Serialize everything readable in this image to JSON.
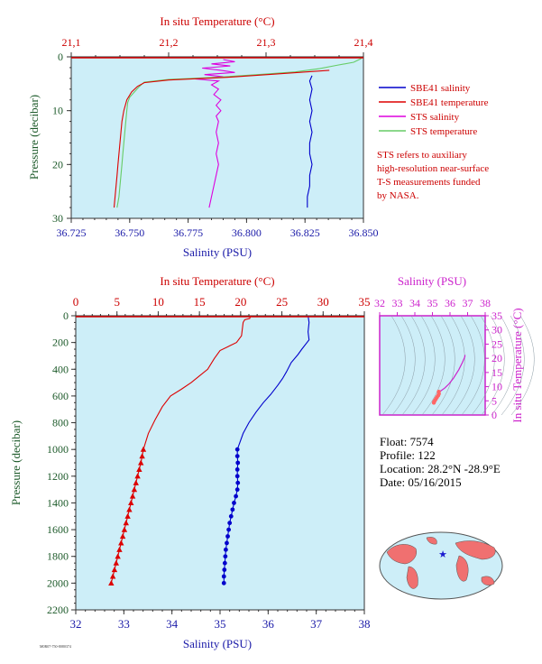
{
  "colors": {
    "panel_bg": "#cdeef8",
    "salinity_axis": "#1a1aa8",
    "temperature_axis": "#cc0000",
    "pressure_axis": "#1d5a2a",
    "sbe_salinity": "#0000cc",
    "sbe_temperature": "#dd0000",
    "sts_salinity": "#dd00dd",
    "sts_temperature": "#66cc66",
    "ts_magenta": "#cc22cc",
    "ts_point": "#ff6666"
  },
  "legend": {
    "sbe_salinity": "SBE41 salinity",
    "sbe_temperature": "SBE41 temperature",
    "sts_salinity": "STS salinity",
    "sts_temperature": "STS temperature"
  },
  "note_lines": [
    "STS refers to auxiliary",
    "high-resolution near-surface",
    "T-S measurements funded",
    "by NASA."
  ],
  "float_info": {
    "float": "Float:  7574",
    "profile": "Profile:  122",
    "location": "Location:  28.2°N  -28.9°E",
    "date": "Date:  05/16/2015"
  },
  "footer_code": "M0R07-750-8080374",
  "chart_data": [
    {
      "type": "line",
      "name": "near-surface profile",
      "top_axis_label": "In situ Temperature (°C)",
      "xlabel": "Salinity (PSU)",
      "ylabel": "Pressure (decibar)",
      "temperature_ticks": [
        "21,1",
        "21,2",
        "21,3",
        "21,4"
      ],
      "salinity_ticks": [
        "36.725",
        "36.750",
        "36.775",
        "36.800",
        "36.825",
        "36.850"
      ],
      "pressure_ticks": [
        "0",
        "10",
        "20",
        "30"
      ],
      "xlim_salinity": [
        36.725,
        36.85
      ],
      "xlim_temperature": [
        21.1,
        21.4
      ],
      "ylim_pressure": [
        0,
        30
      ],
      "y_reversed": true,
      "series": [
        {
          "name": "STS salinity",
          "x_units": "salinity",
          "points": [
            [
              36.79,
              0.5
            ],
            [
              36.795,
              0.9
            ],
            [
              36.785,
              1.3
            ],
            [
              36.793,
              1.7
            ],
            [
              36.781,
              2.1
            ],
            [
              36.789,
              2.5
            ],
            [
              36.795,
              2.9
            ],
            [
              36.782,
              3.3
            ],
            [
              36.79,
              3.7
            ],
            [
              36.778,
              4.1
            ],
            [
              36.788,
              4.5
            ],
            [
              36.785,
              5.2
            ],
            [
              36.788,
              6
            ],
            [
              36.786,
              7
            ],
            [
              36.789,
              8
            ],
            [
              36.787,
              9
            ],
            [
              36.789,
              10
            ],
            [
              36.787,
              11
            ],
            [
              36.788,
              12
            ],
            [
              36.787,
              14
            ],
            [
              36.788,
              16
            ],
            [
              36.787,
              18
            ],
            [
              36.788,
              20
            ],
            [
              36.787,
              22
            ],
            [
              36.786,
              24
            ],
            [
              36.785,
              26
            ],
            [
              36.784,
              28
            ]
          ]
        },
        {
          "name": "SBE41 salinity",
          "x_units": "salinity",
          "points": [
            [
              36.828,
              3.5
            ],
            [
              36.827,
              4.5
            ],
            [
              36.828,
              6
            ],
            [
              36.827,
              8
            ],
            [
              36.828,
              10
            ],
            [
              36.827,
              12
            ],
            [
              36.828,
              14
            ],
            [
              36.827,
              16
            ],
            [
              36.827,
              18
            ],
            [
              36.828,
              20
            ],
            [
              36.827,
              22
            ],
            [
              36.827,
              24
            ],
            [
              36.826,
              26
            ],
            [
              36.826,
              28
            ]
          ]
        },
        {
          "name": "STS temperature",
          "x_units": "temperature",
          "points": [
            [
              21.398,
              0.3
            ],
            [
              21.39,
              1
            ],
            [
              21.372,
              1.6
            ],
            [
              21.355,
              2.2
            ],
            [
              21.33,
              2.8
            ],
            [
              21.3,
              3.2
            ],
            [
              21.25,
              3.8
            ],
            [
              21.2,
              4.2
            ],
            [
              21.175,
              4.7
            ],
            [
              21.17,
              5.5
            ],
            [
              21.165,
              6.5
            ],
            [
              21.16,
              7.5
            ],
            [
              21.158,
              8.5
            ],
            [
              21.157,
              10
            ],
            [
              21.156,
              12
            ],
            [
              21.155,
              14
            ],
            [
              21.154,
              16
            ],
            [
              21.153,
              18
            ],
            [
              21.152,
              20
            ],
            [
              21.151,
              22
            ],
            [
              21.15,
              24
            ],
            [
              21.149,
              26
            ],
            [
              21.147,
              28
            ]
          ]
        },
        {
          "name": "SBE41 temperature",
          "x_units": "temperature",
          "points": [
            [
              21.365,
              2.5
            ],
            [
              21.31,
              3.2
            ],
            [
              21.26,
              3.8
            ],
            [
              21.2,
              4.3
            ],
            [
              21.175,
              4.8
            ],
            [
              21.168,
              5.5
            ],
            [
              21.162,
              6.5
            ],
            [
              21.157,
              8
            ],
            [
              21.154,
              10
            ],
            [
              21.152,
              12
            ],
            [
              21.151,
              14
            ],
            [
              21.15,
              16
            ],
            [
              21.149,
              18
            ],
            [
              21.148,
              20
            ],
            [
              21.147,
              22
            ],
            [
              21.146,
              24
            ],
            [
              21.145,
              26
            ],
            [
              21.144,
              28
            ]
          ]
        }
      ]
    },
    {
      "type": "line",
      "name": "full-depth profile",
      "top_axis_label": "In situ Temperature (°C)",
      "xlabel": "Salinity (PSU)",
      "ylabel": "Pressure (decibar)",
      "temperature_ticks": [
        "0",
        "5",
        "10",
        "15",
        "20",
        "25",
        "30",
        "35"
      ],
      "salinity_ticks": [
        "32",
        "33",
        "34",
        "35",
        "36",
        "37",
        "38"
      ],
      "pressure_ticks": [
        "0",
        "200",
        "400",
        "600",
        "800",
        "1000",
        "1200",
        "1400",
        "1600",
        "1800",
        "2000",
        "2200"
      ],
      "xlim_salinity": [
        32,
        38
      ],
      "xlim_temperature": [
        0,
        35
      ],
      "ylim_pressure": [
        0,
        2200
      ],
      "y_reversed": true,
      "series": [
        {
          "name": "SBE41 temperature",
          "x_units": "temperature",
          "points": [
            [
              21.2,
              0
            ],
            [
              21.1,
              20
            ],
            [
              20.5,
              30
            ],
            [
              20.3,
              50
            ],
            [
              20.1,
              150
            ],
            [
              19.5,
              200
            ],
            [
              18.5,
              230
            ],
            [
              17.5,
              260
            ],
            [
              16.8,
              320
            ],
            [
              16,
              400
            ],
            [
              15,
              450
            ],
            [
              14,
              500
            ],
            [
              12.8,
              550
            ],
            [
              11.5,
              600
            ],
            [
              10.5,
              680
            ],
            [
              9.6,
              780
            ],
            [
              8.8,
              880
            ],
            [
              8.4,
              960
            ],
            [
              8.2,
              1000
            ],
            [
              8.05,
              1050
            ],
            [
              7.9,
              1100
            ],
            [
              7.7,
              1150
            ],
            [
              7.5,
              1200
            ],
            [
              7.3,
              1250
            ],
            [
              7.1,
              1300
            ],
            [
              6.9,
              1350
            ],
            [
              6.7,
              1400
            ],
            [
              6.5,
              1450
            ],
            [
              6.3,
              1500
            ],
            [
              6.1,
              1550
            ],
            [
              5.9,
              1600
            ],
            [
              5.7,
              1650
            ],
            [
              5.5,
              1700
            ],
            [
              5.3,
              1750
            ],
            [
              5.1,
              1800
            ],
            [
              4.9,
              1850
            ],
            [
              4.7,
              1900
            ],
            [
              4.5,
              1950
            ],
            [
              4.3,
              2000
            ]
          ]
        },
        {
          "name": "SBE41 salinity",
          "x_units": "salinity",
          "points": [
            [
              36.83,
              0
            ],
            [
              36.85,
              50
            ],
            [
              36.83,
              120
            ],
            [
              36.85,
              180
            ],
            [
              36.7,
              250
            ],
            [
              36.62,
              290
            ],
            [
              36.48,
              350
            ],
            [
              36.38,
              420
            ],
            [
              36.3,
              470
            ],
            [
              36.2,
              520
            ],
            [
              36.05,
              590
            ],
            [
              35.9,
              650
            ],
            [
              35.75,
              720
            ],
            [
              35.6,
              800
            ],
            [
              35.48,
              880
            ],
            [
              35.4,
              960
            ],
            [
              35.36,
              1000
            ],
            [
              35.36,
              1050
            ],
            [
              35.37,
              1100
            ],
            [
              35.36,
              1150
            ],
            [
              35.36,
              1200
            ],
            [
              35.37,
              1250
            ],
            [
              35.36,
              1300
            ],
            [
              35.33,
              1350
            ],
            [
              35.29,
              1400
            ],
            [
              35.26,
              1450
            ],
            [
              35.23,
              1500
            ],
            [
              35.2,
              1550
            ],
            [
              35.18,
              1600
            ],
            [
              35.16,
              1650
            ],
            [
              35.14,
              1700
            ],
            [
              35.12,
              1750
            ],
            [
              35.11,
              1800
            ],
            [
              35.1,
              1850
            ],
            [
              35.09,
              1900
            ],
            [
              35.08,
              1950
            ],
            [
              35.08,
              2000
            ]
          ]
        }
      ]
    },
    {
      "type": "scatter",
      "name": "T-S diagram",
      "top_axis_label": "Salinity (PSU)",
      "ylabel": "In situ Temperature (°C)",
      "salinity_ticks": [
        "32",
        "33",
        "34",
        "35",
        "36",
        "37",
        "38"
      ],
      "temperature_ticks": [
        "0",
        "5",
        "10",
        "15",
        "20",
        "25",
        "30",
        "35"
      ],
      "xlim_salinity": [
        32,
        38
      ],
      "ylim_temperature": [
        0,
        35
      ],
      "series": [
        {
          "name": "T-S curve",
          "points": [
            [
              36.85,
              21.2
            ],
            [
              36.84,
              20.5
            ],
            [
              36.7,
              18.5
            ],
            [
              36.5,
              16
            ],
            [
              36.2,
              13
            ],
            [
              35.95,
              11
            ],
            [
              35.7,
              9.5
            ],
            [
              35.45,
              8.4
            ],
            [
              35.38,
              8.1
            ]
          ]
        },
        {
          "name": "T-S points",
          "points": [
            [
              35.36,
              8.2
            ],
            [
              35.37,
              7.5
            ],
            [
              35.33,
              6.9
            ],
            [
              35.26,
              6.3
            ],
            [
              35.2,
              5.7
            ],
            [
              35.14,
              5.1
            ],
            [
              35.1,
              4.7
            ],
            [
              35.08,
              4.3
            ]
          ]
        }
      ]
    }
  ]
}
